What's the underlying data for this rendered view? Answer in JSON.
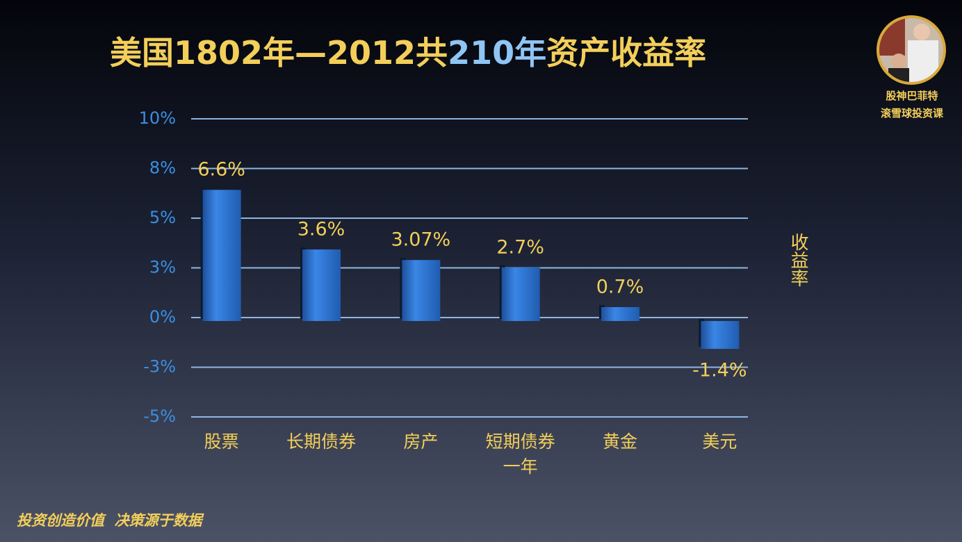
{
  "chart_data": {
    "type": "bar",
    "title_parts": [
      "美国1802年—2012共",
      "210年",
      "资产收益率"
    ],
    "y_label": "收益率",
    "categories": [
      "股票",
      "长期债券",
      "房产",
      "短期债券\n一年",
      "黄金",
      "美元"
    ],
    "values": [
      6.6,
      3.6,
      3.07,
      2.7,
      0.7,
      -1.4
    ],
    "value_labels": [
      "6.6%",
      "3.6%",
      "3.07%",
      "2.7%",
      "0.7%",
      "-1.4%"
    ],
    "color": "#2f78d8",
    "ylim": [
      -5,
      10
    ],
    "yticks": [
      {
        "value": 10,
        "label": "10%"
      },
      {
        "value": 7.5,
        "label": "8%"
      },
      {
        "value": 5,
        "label": "5%"
      },
      {
        "value": 2.5,
        "label": "3%"
      },
      {
        "value": 0,
        "label": "0%"
      },
      {
        "value": -2.5,
        "label": "-3%"
      },
      {
        "value": -5,
        "label": "-5%"
      }
    ],
    "grid": true
  },
  "badge": {
    "line1": "股神巴菲特",
    "line2": "滚雪球投资课"
  },
  "footer": "投资创造价值  决策源于数据"
}
